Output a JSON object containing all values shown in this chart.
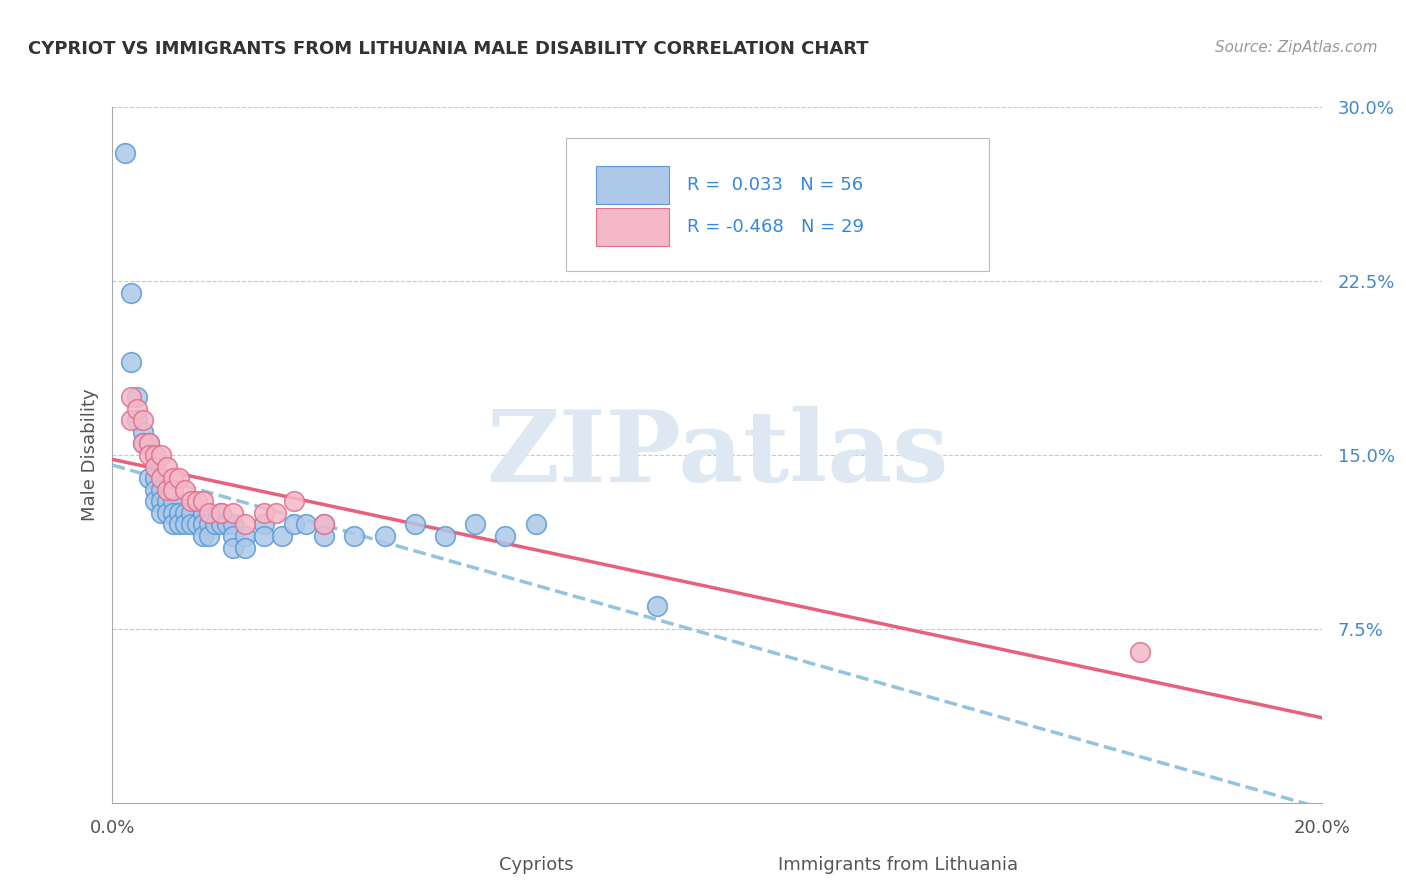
{
  "title": "CYPRIOT VS IMMIGRANTS FROM LITHUANIA MALE DISABILITY CORRELATION CHART",
  "source": "Source: ZipAtlas.com",
  "ylabel": "Male Disability",
  "xlim": [
    0.0,
    0.2
  ],
  "ylim": [
    0.0,
    0.3
  ],
  "ytick_labels_right": [
    "7.5%",
    "15.0%",
    "22.5%",
    "30.0%"
  ],
  "ytick_vals_right": [
    0.075,
    0.15,
    0.225,
    0.3
  ],
  "cypriot_color": "#adc8e8",
  "cypriot_edge": "#5b9bd5",
  "lithuania_color": "#f4b8c8",
  "lithuania_edge": "#e07090",
  "trend_blue_color": "#7ab4d8",
  "trend_pink_color": "#e8607a",
  "legend_R1": "R =  0.033",
  "legend_N1": "N = 56",
  "legend_R2": "R = -0.468",
  "legend_N2": "N = 29",
  "legend_label1": "Cypriots",
  "legend_label2": "Immigrants from Lithuania",
  "watermark": "ZIPatlas",
  "background_color": "#ffffff",
  "grid_color": "#c8c8c8",
  "cypriot_x": [
    0.002,
    0.003,
    0.003,
    0.004,
    0.004,
    0.005,
    0.005,
    0.006,
    0.006,
    0.007,
    0.007,
    0.007,
    0.008,
    0.008,
    0.008,
    0.009,
    0.009,
    0.01,
    0.01,
    0.01,
    0.011,
    0.011,
    0.012,
    0.012,
    0.013,
    0.013,
    0.014,
    0.015,
    0.015,
    0.015,
    0.016,
    0.016,
    0.017,
    0.018,
    0.018,
    0.019,
    0.02,
    0.02,
    0.02,
    0.022,
    0.022,
    0.025,
    0.025,
    0.028,
    0.03,
    0.032,
    0.035,
    0.035,
    0.04,
    0.045,
    0.05,
    0.055,
    0.06,
    0.065,
    0.07,
    0.09
  ],
  "cypriot_y": [
    0.28,
    0.22,
    0.19,
    0.175,
    0.165,
    0.16,
    0.155,
    0.155,
    0.14,
    0.14,
    0.135,
    0.13,
    0.135,
    0.13,
    0.125,
    0.13,
    0.125,
    0.13,
    0.125,
    0.12,
    0.125,
    0.12,
    0.125,
    0.12,
    0.125,
    0.12,
    0.12,
    0.125,
    0.12,
    0.115,
    0.12,
    0.115,
    0.12,
    0.125,
    0.12,
    0.12,
    0.12,
    0.115,
    0.11,
    0.115,
    0.11,
    0.12,
    0.115,
    0.115,
    0.12,
    0.12,
    0.12,
    0.115,
    0.115,
    0.115,
    0.12,
    0.115,
    0.12,
    0.115,
    0.12,
    0.085
  ],
  "lithuania_x": [
    0.003,
    0.003,
    0.004,
    0.005,
    0.005,
    0.006,
    0.006,
    0.007,
    0.007,
    0.008,
    0.008,
    0.009,
    0.009,
    0.01,
    0.01,
    0.011,
    0.012,
    0.013,
    0.014,
    0.015,
    0.016,
    0.018,
    0.02,
    0.022,
    0.025,
    0.027,
    0.03,
    0.035,
    0.17
  ],
  "lithuania_y": [
    0.175,
    0.165,
    0.17,
    0.165,
    0.155,
    0.155,
    0.15,
    0.15,
    0.145,
    0.15,
    0.14,
    0.145,
    0.135,
    0.14,
    0.135,
    0.14,
    0.135,
    0.13,
    0.13,
    0.13,
    0.125,
    0.125,
    0.125,
    0.12,
    0.125,
    0.125,
    0.13,
    0.12,
    0.065
  ]
}
